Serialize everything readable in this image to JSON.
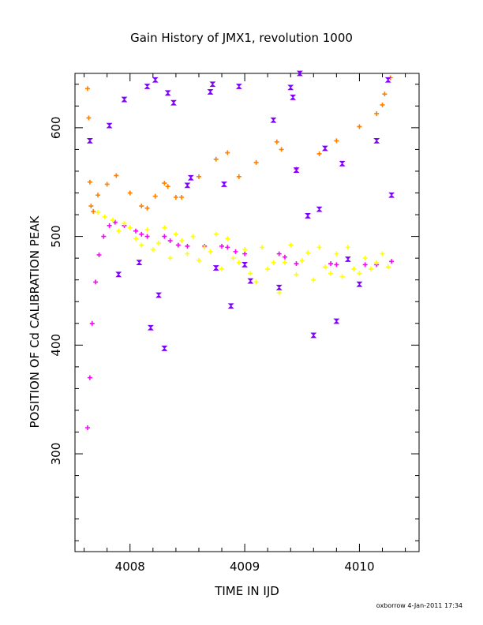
{
  "chart_data": {
    "type": "scatter",
    "title": "Gain History of JMX1, revolution 1000",
    "xlabel": "TIME IN IJD",
    "ylabel": "POSITION OF Cd CALIBRATION PEAK",
    "xlim": [
      4007.52,
      4010.52
    ],
    "ylim": [
      210,
      650
    ],
    "x_ticks": [
      "4008",
      "4009",
      "4010"
    ],
    "y_ticks": [
      "300",
      "400",
      "500",
      "600"
    ],
    "grid": false,
    "footer": "oxborrow   4-Jan-2011 17:34",
    "series": [
      {
        "marker": "plus",
        "color": "#ff7f00",
        "x": [
          4007.63,
          4007.64,
          4007.65,
          4007.66,
          4007.68,
          4007.72,
          4007.8,
          4007.88,
          4008.0,
          4008.1,
          4008.15,
          4008.22,
          4008.3,
          4008.33,
          4008.4,
          4008.45,
          4008.6,
          4008.75,
          4008.85,
          4008.95,
          4009.1,
          4009.28,
          4009.32,
          4009.45,
          4009.65,
          4009.8,
          4010.0,
          4010.15,
          4010.2,
          4010.22,
          4010.27
        ],
        "y": [
          636,
          609,
          550,
          528,
          523,
          538,
          548,
          556,
          540,
          528,
          526,
          537,
          549,
          546,
          536,
          536,
          555,
          571,
          577,
          555,
          568,
          587,
          580,
          562,
          576,
          588,
          601,
          613,
          621,
          631,
          646
        ]
      },
      {
        "marker": "plus",
        "color": "#ff00ff",
        "x": [
          4007.63,
          4007.65,
          4007.67,
          4007.7,
          4007.73,
          4007.77,
          4007.82,
          4007.87,
          4007.95,
          4008.05,
          4008.1,
          4008.15,
          4008.3,
          4008.35,
          4008.42,
          4008.5,
          4008.65,
          4008.8,
          4008.85,
          4008.92,
          4009.0,
          4009.3,
          4009.35,
          4009.45,
          4009.75,
          4009.8,
          4010.05,
          4010.15,
          4010.28
        ],
        "y": [
          324,
          370,
          420,
          458,
          483,
          500,
          510,
          513,
          510,
          505,
          502,
          500,
          500,
          496,
          492,
          491,
          491,
          491,
          490,
          486,
          484,
          484,
          481,
          475,
          475,
          474,
          474,
          474,
          477
        ]
      },
      {
        "marker": "plus",
        "color": "#ffff00",
        "x": [
          4007.72,
          4007.78,
          4007.85,
          4007.9,
          4007.95,
          4008.0,
          4008.05,
          4008.1,
          4008.15,
          4008.2,
          4008.25,
          4008.3,
          4008.35,
          4008.4,
          4008.45,
          4008.5,
          4008.55,
          4008.6,
          4008.65,
          4008.7,
          4008.75,
          4008.8,
          4008.85,
          4008.9,
          4008.95,
          4009.0,
          4009.05,
          4009.1,
          4009.15,
          4009.2,
          4009.25,
          4009.3,
          4009.35,
          4009.4,
          4009.45,
          4009.5,
          4009.55,
          4009.6,
          4009.65,
          4009.7,
          4009.75,
          4009.8,
          4009.85,
          4009.9,
          4009.95,
          4010.0,
          4010.05,
          4010.1,
          4010.15,
          4010.2,
          4010.25
        ],
        "y": [
          522,
          518,
          515,
          505,
          512,
          508,
          498,
          492,
          506,
          488,
          494,
          508,
          480,
          502,
          496,
          484,
          500,
          478,
          490,
          486,
          502,
          470,
          498,
          480,
          476,
          488,
          466,
          458,
          490,
          470,
          476,
          448,
          476,
          492,
          465,
          478,
          485,
          460,
          490,
          472,
          466,
          484,
          463,
          490,
          470,
          466,
          480,
          470,
          476,
          484,
          472
        ]
      },
      {
        "marker": "hourglass",
        "color": "#8000ff",
        "x": [
          4007.65,
          4007.82,
          4007.9,
          4007.95,
          4008.08,
          4008.15,
          4008.18,
          4008.22,
          4008.25,
          4008.3,
          4008.33,
          4008.38,
          4008.5,
          4008.53,
          4008.7,
          4008.72,
          4008.75,
          4008.82,
          4008.88,
          4008.95,
          4009.0,
          4009.05,
          4009.25,
          4009.3,
          4009.4,
          4009.42,
          4009.45,
          4009.48,
          4009.55,
          4009.6,
          4009.65,
          4009.7,
          4009.8,
          4009.85,
          4009.9,
          4010.0,
          4010.15,
          4010.25,
          4010.28
        ],
        "y": [
          588,
          602,
          465,
          626,
          476,
          638,
          416,
          644,
          446,
          397,
          632,
          623,
          547,
          554,
          633,
          640,
          471,
          548,
          436,
          638,
          474,
          459,
          607,
          453,
          637,
          628,
          561,
          650,
          519,
          409,
          525,
          581,
          422,
          567,
          479,
          456,
          588,
          644,
          538
        ]
      }
    ]
  }
}
